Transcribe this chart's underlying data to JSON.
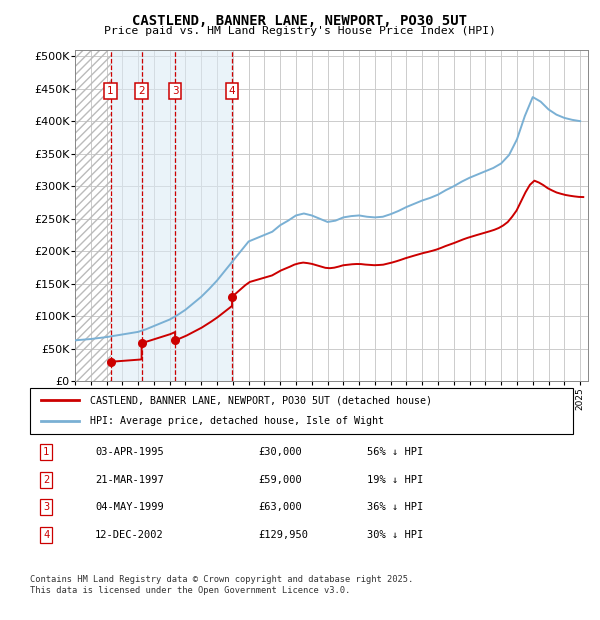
{
  "title": "CASTLEND, BANNER LANE, NEWPORT, PO30 5UT",
  "subtitle": "Price paid vs. HM Land Registry's House Price Index (HPI)",
  "ylabel_ticks": [
    0,
    50000,
    100000,
    150000,
    200000,
    250000,
    300000,
    350000,
    400000,
    450000,
    500000
  ],
  "ylabel_labels": [
    "£0",
    "£50K",
    "£100K",
    "£150K",
    "£200K",
    "£250K",
    "£300K",
    "£350K",
    "£400K",
    "£450K",
    "£500K"
  ],
  "xlim_min": 1993,
  "xlim_max": 2025.5,
  "ylim_min": 0,
  "ylim_max": 510000,
  "purchases": [
    {
      "num": 1,
      "year": 1995.25,
      "price": 30000,
      "date": "03-APR-1995",
      "pct_hpi": "56% ↓ HPI"
    },
    {
      "num": 2,
      "year": 1997.22,
      "price": 59000,
      "date": "21-MAR-1997",
      "pct_hpi": "19% ↓ HPI"
    },
    {
      "num": 3,
      "year": 1999.34,
      "price": 63000,
      "date": "04-MAY-1999",
      "pct_hpi": "36% ↓ HPI"
    },
    {
      "num": 4,
      "year": 2002.95,
      "price": 129950,
      "date": "12-DEC-2002",
      "pct_hpi": "30% ↓ HPI"
    }
  ],
  "hpi_x": [
    1993.0,
    1993.5,
    1994.0,
    1994.5,
    1995.0,
    1995.5,
    1996.0,
    1996.5,
    1997.0,
    1997.5,
    1998.0,
    1998.5,
    1999.0,
    1999.5,
    2000.0,
    2000.5,
    2001.0,
    2001.5,
    2002.0,
    2002.5,
    2003.0,
    2003.5,
    2004.0,
    2004.5,
    2005.0,
    2005.5,
    2006.0,
    2006.5,
    2007.0,
    2007.5,
    2008.0,
    2008.5,
    2009.0,
    2009.5,
    2010.0,
    2010.5,
    2011.0,
    2011.5,
    2012.0,
    2012.5,
    2013.0,
    2013.5,
    2014.0,
    2014.5,
    2015.0,
    2015.5,
    2016.0,
    2016.5,
    2017.0,
    2017.5,
    2018.0,
    2018.5,
    2019.0,
    2019.5,
    2020.0,
    2020.5,
    2021.0,
    2021.5,
    2022.0,
    2022.5,
    2023.0,
    2023.5,
    2024.0,
    2024.5,
    2025.0
  ],
  "hpi_y": [
    63000,
    64000,
    65000,
    66500,
    68000,
    70000,
    72000,
    74000,
    76000,
    80000,
    85000,
    90000,
    95000,
    102000,
    110000,
    120000,
    130000,
    142000,
    155000,
    170000,
    185000,
    200000,
    215000,
    220000,
    225000,
    230000,
    240000,
    247000,
    255000,
    258000,
    255000,
    250000,
    245000,
    247000,
    252000,
    254000,
    255000,
    253000,
    252000,
    253000,
    257000,
    262000,
    268000,
    273000,
    278000,
    282000,
    287000,
    294000,
    300000,
    307000,
    313000,
    318000,
    323000,
    328000,
    335000,
    348000,
    372000,
    408000,
    437000,
    430000,
    418000,
    410000,
    405000,
    402000,
    400000
  ],
  "red_line_color": "#cc0000",
  "blue_line_color": "#7ab0d4",
  "grid_color": "#cccccc",
  "legend_label_red": "CASTLEND, BANNER LANE, NEWPORT, PO30 5UT (detached house)",
  "legend_label_blue": "HPI: Average price, detached house, Isle of Wight",
  "table_rows": [
    {
      "num": 1,
      "date": "03-APR-1995",
      "price": "£30,000",
      "pct_hpi": "56% ↓ HPI"
    },
    {
      "num": 2,
      "date": "21-MAR-1997",
      "price": "£59,000",
      "pct_hpi": "19% ↓ HPI"
    },
    {
      "num": 3,
      "date": "04-MAY-1999",
      "price": "£63,000",
      "pct_hpi": "36% ↓ HPI"
    },
    {
      "num": 4,
      "date": "12-DEC-2002",
      "price": "£129,950",
      "pct_hpi": "30% ↓ HPI"
    }
  ],
  "footnote_line1": "Contains HM Land Registry data © Crown copyright and database right 2025.",
  "footnote_line2": "This data is licensed under the Open Government Licence v3.0."
}
